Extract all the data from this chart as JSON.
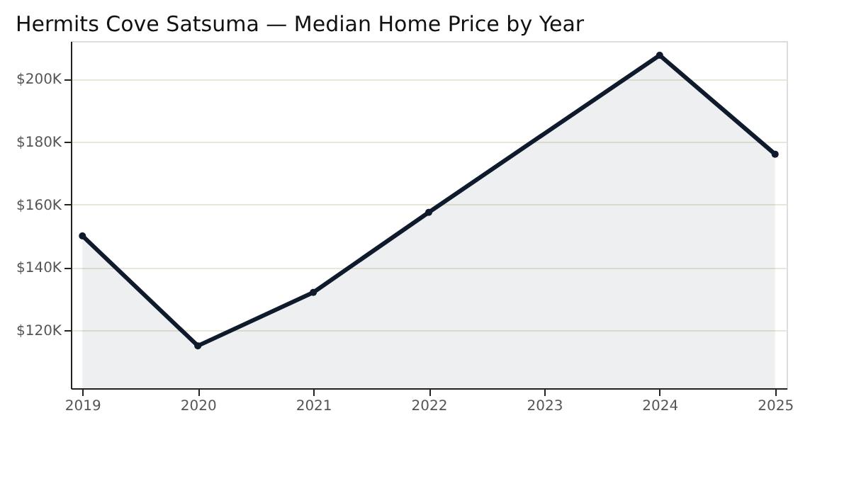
{
  "chart_data": {
    "type": "area",
    "title": "Hermits Cove Satsuma — Median Home Price by Year",
    "x": [
      2019,
      2020,
      2021,
      2022,
      2024,
      2025
    ],
    "series": [
      {
        "color": "#0f1b2d",
        "values": [
          150000,
          115000,
          132000,
          157500,
          207500,
          176000
        ]
      }
    ],
    "xlim": [
      2018.9,
      2025.1
    ],
    "xticks": [
      2019,
      2020,
      2021,
      2022,
      2023,
      2024,
      2025
    ],
    "ylim": [
      101500,
      212000
    ],
    "yticks": [
      {
        "value": 120000,
        "label": "$120K"
      },
      {
        "value": 140000,
        "label": "$140K"
      },
      {
        "value": 160000,
        "label": "$160K"
      },
      {
        "value": 180000,
        "label": "$180K"
      },
      {
        "value": 200000,
        "label": "$200K"
      }
    ],
    "grid": "y",
    "marker": "circle",
    "line_style": "solid"
  }
}
